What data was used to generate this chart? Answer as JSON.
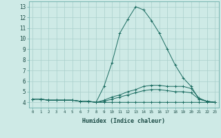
{
  "xlabel": "Humidex (Indice chaleur)",
  "xlim": [
    -0.5,
    23.5
  ],
  "ylim": [
    3.5,
    13.5
  ],
  "xtick_labels": [
    "0",
    "1",
    "2",
    "3",
    "4",
    "5",
    "6",
    "7",
    "8",
    "9",
    "10",
    "11",
    "12",
    "13",
    "14",
    "15",
    "16",
    "17",
    "18",
    "19",
    "20",
    "21",
    "22",
    "23"
  ],
  "ytick_labels": [
    "4",
    "5",
    "6",
    "7",
    "8",
    "9",
    "10",
    "11",
    "12",
    "13"
  ],
  "ytick_vals": [
    4,
    5,
    6,
    7,
    8,
    9,
    10,
    11,
    12,
    13
  ],
  "background_color": "#ceeae6",
  "grid_color": "#aacfcb",
  "line_color": "#1a6b60",
  "line1_y": [
    4.3,
    4.3,
    4.2,
    4.2,
    4.2,
    4.2,
    4.1,
    4.1,
    4.0,
    5.5,
    7.7,
    10.5,
    11.8,
    13.0,
    12.7,
    11.7,
    10.5,
    9.0,
    7.5,
    6.3,
    5.5,
    4.3,
    4.1,
    4.0
  ],
  "line2_y": [
    4.3,
    4.3,
    4.2,
    4.2,
    4.2,
    4.2,
    4.1,
    4.1,
    4.0,
    4.2,
    4.5,
    4.7,
    5.0,
    5.2,
    5.5,
    5.6,
    5.6,
    5.5,
    5.5,
    5.5,
    5.3,
    4.4,
    4.1,
    4.0
  ],
  "line3_y": [
    4.3,
    4.3,
    4.2,
    4.2,
    4.2,
    4.2,
    4.1,
    4.1,
    4.0,
    4.1,
    4.3,
    4.5,
    4.7,
    4.9,
    5.1,
    5.2,
    5.2,
    5.1,
    5.0,
    5.0,
    4.9,
    4.3,
    4.1,
    4.0
  ],
  "line4_y": [
    4.3,
    4.3,
    4.2,
    4.2,
    4.2,
    4.2,
    4.1,
    4.1,
    4.0,
    4.0,
    4.0,
    4.0,
    4.0,
    4.0,
    4.0,
    4.0,
    4.0,
    4.0,
    4.0,
    4.0,
    4.0,
    4.0,
    4.0,
    4.0
  ]
}
